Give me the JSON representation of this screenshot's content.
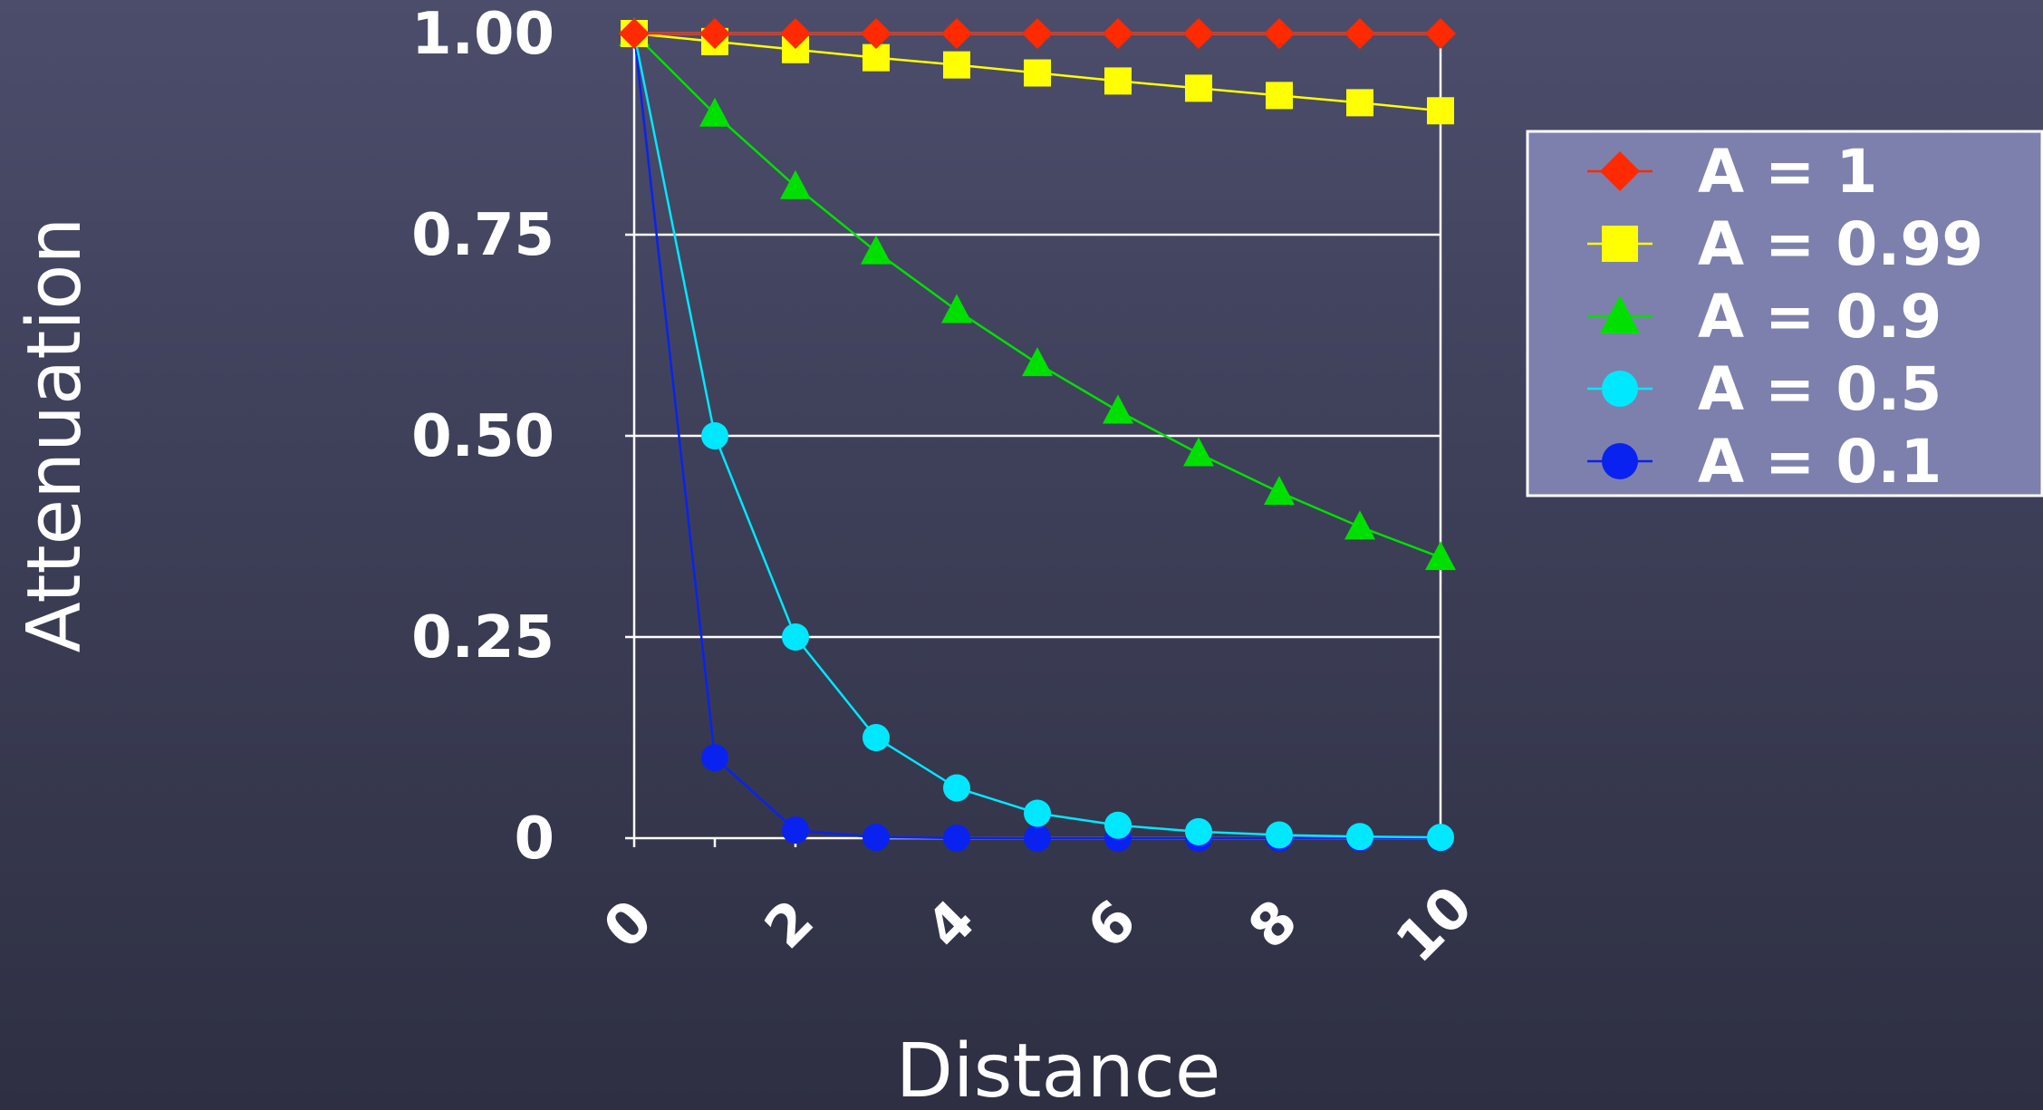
{
  "chart_data": {
    "type": "line",
    "xlabel": "Distance",
    "ylabel": "Attenuation",
    "x": [
      0,
      1,
      2,
      3,
      4,
      5,
      6,
      7,
      8,
      9,
      10
    ],
    "xlim": [
      0,
      10
    ],
    "ylim": [
      0,
      1
    ],
    "x_tick_labels": [
      "0",
      "2",
      "4",
      "6",
      "8",
      "10"
    ],
    "x_tick_values": [
      0,
      2,
      4,
      6,
      8,
      10
    ],
    "y_tick_labels": [
      "0",
      "0.25",
      "0.50",
      "0.75",
      "1.00"
    ],
    "y_tick_values": [
      0,
      0.25,
      0.5,
      0.75,
      1.0
    ],
    "grid": "horizontal",
    "legend_position": "right",
    "series": [
      {
        "name": "A = 1",
        "color": "#ff2a00",
        "marker": "diamond",
        "values": [
          1,
          1,
          1,
          1,
          1,
          1,
          1,
          1,
          1,
          1,
          1
        ]
      },
      {
        "name": "A = 0.99",
        "color": "#ffff00",
        "marker": "square",
        "values": [
          1,
          0.99,
          0.98,
          0.97,
          0.961,
          0.951,
          0.941,
          0.932,
          0.923,
          0.914,
          0.904
        ]
      },
      {
        "name": "A = 0.9",
        "color": "#00e000",
        "marker": "triangle",
        "values": [
          1,
          0.9,
          0.81,
          0.729,
          0.656,
          0.59,
          0.531,
          0.478,
          0.43,
          0.387,
          0.349
        ]
      },
      {
        "name": "A = 0.5",
        "color": "#00e8ff",
        "marker": "circle",
        "values": [
          1,
          0.5,
          0.25,
          0.125,
          0.0625,
          0.031,
          0.016,
          0.008,
          0.004,
          0.002,
          0.001
        ]
      },
      {
        "name": "A = 0.1",
        "color": "#0a22f0",
        "marker": "circle",
        "values": [
          1,
          0.1,
          0.01,
          0.001,
          0.0001,
          0,
          0,
          0,
          0,
          0,
          0
        ]
      }
    ]
  }
}
